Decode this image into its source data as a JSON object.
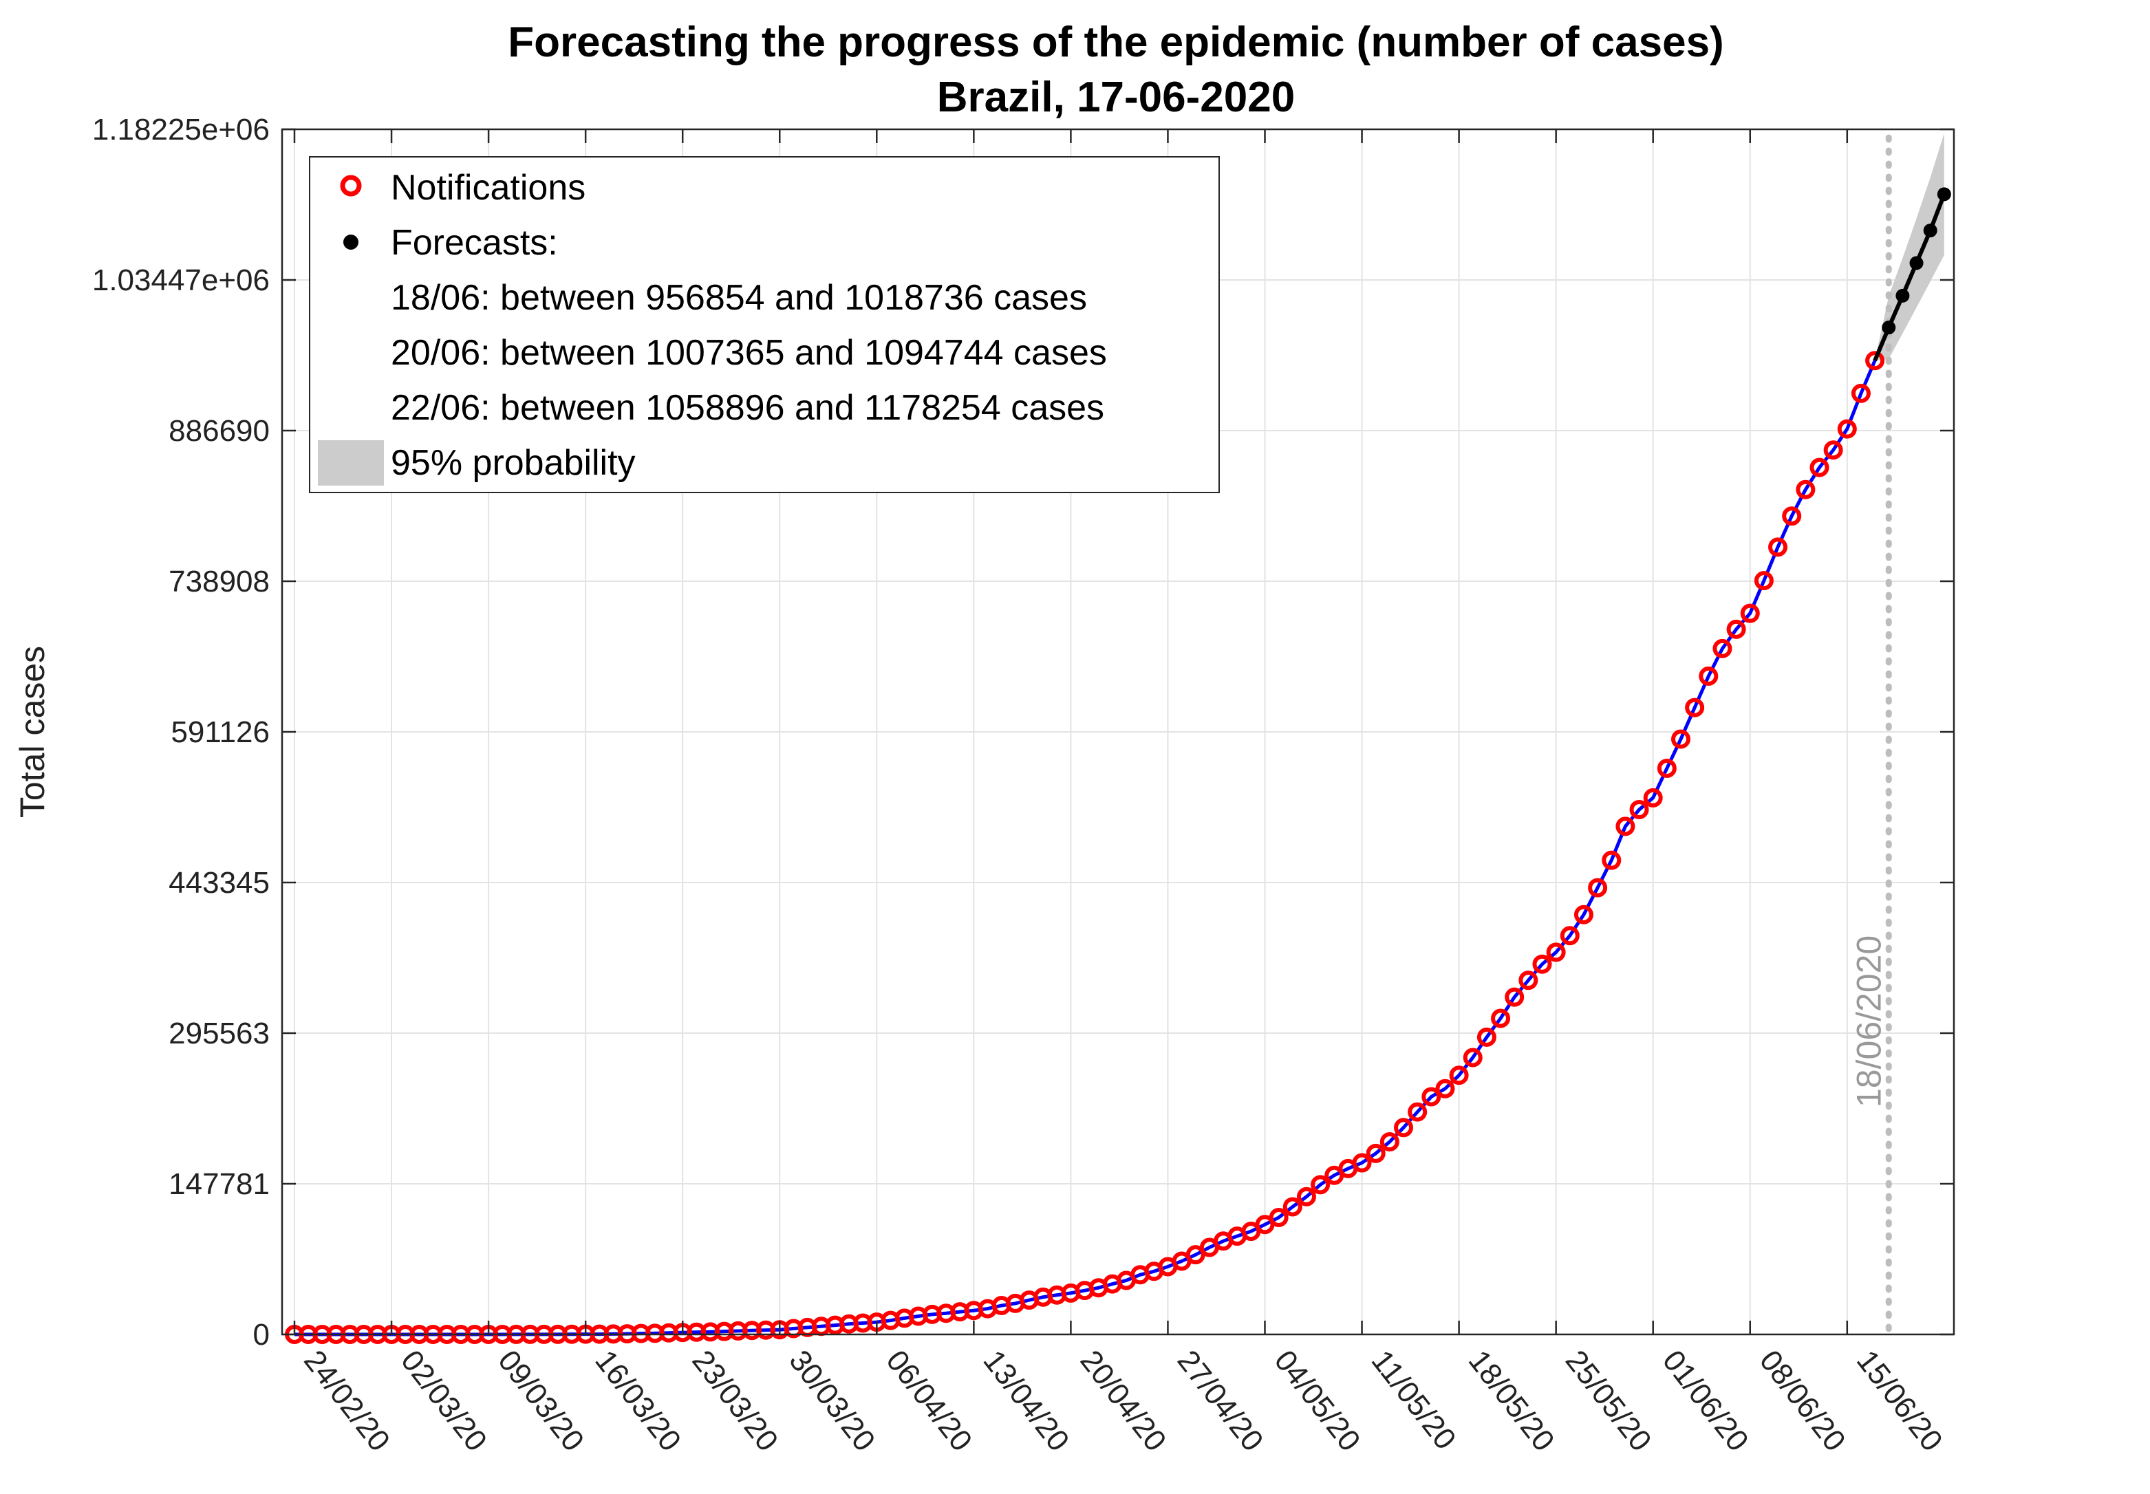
{
  "chart_data": {
    "type": "line",
    "title": "Forecasting the progress of the epidemic (number of cases)",
    "subtitle": "Brazil, 17-06-2020",
    "ylabel": "Total cases",
    "xlabel": "",
    "ylim": [
      0,
      1182254
    ],
    "yticks": [
      0,
      147781,
      295563,
      443345,
      591126,
      738908,
      886690,
      1034470,
      1182250
    ],
    "ytick_labels": [
      "0",
      "147781",
      "295563",
      "443345",
      "591126",
      "738908",
      "886690",
      "1.03447e+06",
      "1.18225e+06"
    ],
    "x_start": "24/02/20",
    "xtick_labels": [
      "24/02/20",
      "02/03/20",
      "09/03/20",
      "16/03/20",
      "23/03/20",
      "30/03/20",
      "06/04/20",
      "13/04/20",
      "20/04/20",
      "27/04/20",
      "04/05/20",
      "11/05/20",
      "18/05/20",
      "25/05/20",
      "01/06/20",
      "08/06/20",
      "15/06/20"
    ],
    "grid": true,
    "legend_position": "top-left",
    "legend": {
      "notifications": "Notifications",
      "forecasts": "Forecasts:",
      "lines": [
        "18/06: between 956854 and 1018736 cases",
        "20/06: between 1007365 and 1094744 cases",
        "22/06: between 1058896 and 1178254 cases"
      ],
      "band": "95% probability"
    },
    "vertical_marker": {
      "date": "18/06/20",
      "label": "18/06/2020"
    },
    "series": [
      {
        "name": "Notifications",
        "color": "#ff0000",
        "line_color": "#0000ff",
        "x": [
          "24/02/20",
          "25/02/20",
          "26/02/20",
          "27/02/20",
          "28/02/20",
          "29/02/20",
          "01/03/20",
          "02/03/20",
          "03/03/20",
          "04/03/20",
          "05/03/20",
          "06/03/20",
          "07/03/20",
          "08/03/20",
          "09/03/20",
          "10/03/20",
          "11/03/20",
          "12/03/20",
          "13/03/20",
          "14/03/20",
          "15/03/20",
          "16/03/20",
          "17/03/20",
          "18/03/20",
          "19/03/20",
          "20/03/20",
          "21/03/20",
          "22/03/20",
          "23/03/20",
          "24/03/20",
          "25/03/20",
          "26/03/20",
          "27/03/20",
          "28/03/20",
          "29/03/20",
          "30/03/20",
          "31/03/20",
          "01/04/20",
          "02/04/20",
          "03/04/20",
          "04/04/20",
          "05/04/20",
          "06/04/20",
          "07/04/20",
          "08/04/20",
          "09/04/20",
          "10/04/20",
          "11/04/20",
          "12/04/20",
          "13/04/20",
          "14/04/20",
          "15/04/20",
          "16/04/20",
          "17/04/20",
          "18/04/20",
          "19/04/20",
          "20/04/20",
          "21/04/20",
          "22/04/20",
          "23/04/20",
          "24/04/20",
          "25/04/20",
          "26/04/20",
          "27/04/20",
          "28/04/20",
          "29/04/20",
          "30/04/20",
          "01/05/20",
          "02/05/20",
          "03/05/20",
          "04/05/20",
          "05/05/20",
          "06/05/20",
          "07/05/20",
          "08/05/20",
          "09/05/20",
          "10/05/20",
          "11/05/20",
          "12/05/20",
          "13/05/20",
          "14/05/20",
          "15/05/20",
          "16/05/20",
          "17/05/20",
          "18/05/20",
          "19/05/20",
          "20/05/20",
          "21/05/20",
          "22/05/20",
          "23/05/20",
          "24/05/20",
          "25/05/20",
          "26/05/20",
          "27/05/20",
          "28/05/20",
          "29/05/20",
          "30/05/20",
          "31/05/20",
          "01/06/20",
          "02/06/20",
          "03/06/20",
          "04/06/20",
          "05/06/20",
          "06/06/20",
          "07/06/20",
          "08/06/20",
          "09/06/20",
          "10/06/20",
          "11/06/20",
          "12/06/20",
          "13/06/20",
          "14/06/20",
          "15/06/20",
          "16/06/20",
          "17/06/20"
        ],
        "values": [
          1,
          1,
          1,
          1,
          1,
          2,
          2,
          2,
          2,
          3,
          8,
          13,
          25,
          25,
          30,
          34,
          52,
          77,
          98,
          121,
          200,
          234,
          291,
          428,
          621,
          904,
          1128,
          1546,
          1891,
          2201,
          2433,
          2915,
          3417,
          3904,
          4256,
          4579,
          5717,
          6836,
          7910,
          9056,
          10278,
          11130,
          12056,
          13717,
          15927,
          17857,
          19638,
          20727,
          22169,
          23430,
          25262,
          28320,
          30425,
          33682,
          36599,
          38654,
          40581,
          43079,
          45757,
          49492,
          52995,
          58509,
          61888,
          66501,
          71886,
          78162,
          85380,
          91589,
          96396,
          101147,
          107780,
          114715,
          125218,
          135106,
          146894,
          156061,
          162699,
          168331,
          177589,
          188974,
          202918,
          218223,
          233142,
          241080,
          254220,
          271628,
          291579,
          310087,
          330890,
          347398,
          363211,
          374898,
          391222,
          411821,
          438238,
          465166,
          498440,
          514849,
          526447,
          555383,
          584016,
          614941,
          645771,
          672846,
          691758,
          707412,
          739503,
          772416,
          802828,
          828810,
          850514,
          867624,
          888271,
          923189,
          955377
        ]
      },
      {
        "name": "Forecasts",
        "color": "#000000",
        "x": [
          "18/06/20",
          "19/06/20",
          "20/06/20",
          "21/06/20",
          "22/06/20"
        ],
        "values": [
          987795,
          1019000,
          1051055,
          1083000,
          1118575
        ],
        "band_low": [
          956854,
          982000,
          1007365,
          1033000,
          1058896
        ],
        "band_high": [
          1018736,
          1056000,
          1094744,
          1135000,
          1178254
        ]
      }
    ]
  }
}
